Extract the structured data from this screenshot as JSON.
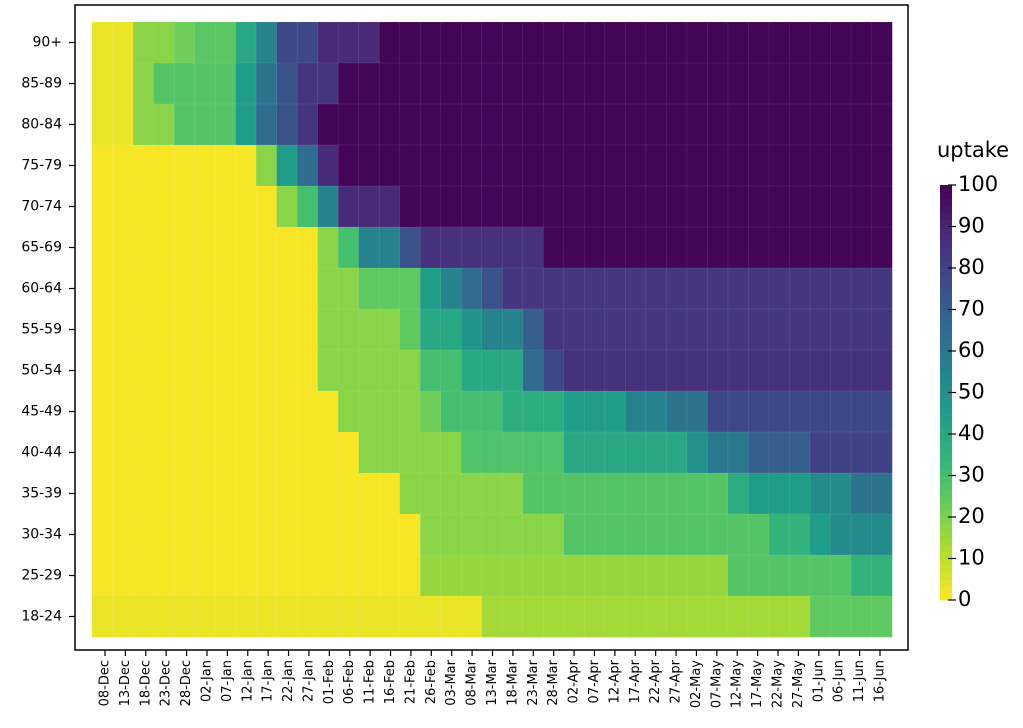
{
  "chart_data": {
    "type": "heatmap",
    "categories": [
      "08-Dec",
      "13-Dec",
      "18-Dec",
      "23-Dec",
      "28-Dec",
      "02-Jan",
      "07-Jan",
      "12-Jan",
      "17-Jan",
      "22-Jan",
      "27-Jan",
      "01-Feb",
      "06-Feb",
      "11-Feb",
      "16-Feb",
      "21-Feb",
      "26-Feb",
      "03-Mar",
      "08-Mar",
      "13-Mar",
      "18-Mar",
      "23-Mar",
      "28-Mar",
      "02-Apr",
      "07-Apr",
      "12-Apr",
      "17-Apr",
      "22-Apr",
      "27-Apr",
      "02-May",
      "07-May",
      "12-May",
      "17-May",
      "22-May",
      "27-May",
      "01-Jun",
      "06-Jun",
      "11-Jun",
      "16-Jun"
    ],
    "rows": [
      "90+",
      "85-89",
      "80-84",
      "75-79",
      "70-74",
      "65-69",
      "60-64",
      "55-59",
      "50-54",
      "45-49",
      "40-44",
      "35-39",
      "30-34",
      "25-29",
      "18-24"
    ],
    "values": [
      [
        3,
        3,
        18,
        18,
        22,
        26,
        26,
        40,
        55,
        78,
        78,
        88,
        88,
        88,
        99,
        99,
        99,
        99,
        99,
        99,
        99,
        99,
        99,
        99,
        99,
        99,
        99,
        99,
        99,
        99,
        99,
        99,
        99,
        99,
        99,
        99,
        99,
        99,
        99
      ],
      [
        3,
        3,
        18,
        27,
        27,
        27,
        27,
        45,
        62,
        75,
        85,
        85,
        99,
        99,
        99,
        99,
        99,
        99,
        99,
        99,
        99,
        99,
        99,
        99,
        99,
        99,
        99,
        99,
        99,
        99,
        99,
        99,
        99,
        99,
        99,
        99,
        99,
        99,
        99
      ],
      [
        3,
        3,
        18,
        18,
        27,
        27,
        27,
        45,
        65,
        75,
        85,
        99,
        99,
        99,
        99,
        99,
        99,
        99,
        99,
        99,
        99,
        99,
        99,
        99,
        99,
        99,
        99,
        99,
        99,
        99,
        99,
        99,
        99,
        99,
        99,
        99,
        99,
        99,
        99
      ],
      [
        1,
        1,
        1,
        1,
        1,
        1,
        1,
        1,
        18,
        45,
        65,
        88,
        99,
        99,
        99,
        99,
        99,
        99,
        99,
        99,
        99,
        99,
        99,
        99,
        99,
        99,
        99,
        99,
        99,
        99,
        99,
        99,
        99,
        99,
        99,
        99,
        99,
        99,
        99
      ],
      [
        1,
        1,
        1,
        1,
        1,
        1,
        1,
        1,
        1,
        18,
        30,
        55,
        88,
        88,
        88,
        99,
        99,
        99,
        99,
        99,
        99,
        99,
        99,
        99,
        99,
        99,
        99,
        99,
        99,
        99,
        99,
        99,
        99,
        99,
        99,
        99,
        99,
        99,
        99
      ],
      [
        1,
        1,
        1,
        1,
        1,
        1,
        1,
        1,
        1,
        1,
        1,
        18,
        30,
        55,
        55,
        75,
        86,
        86,
        86,
        86,
        86,
        86,
        99,
        99,
        99,
        99,
        99,
        99,
        99,
        99,
        99,
        99,
        99,
        99,
        99,
        99,
        99,
        99,
        99
      ],
      [
        1,
        1,
        1,
        1,
        1,
        1,
        1,
        1,
        1,
        1,
        1,
        18,
        18,
        25,
        25,
        25,
        45,
        55,
        65,
        75,
        84,
        84,
        84,
        84,
        84,
        84,
        84,
        84,
        84,
        84,
        84,
        84,
        84,
        84,
        84,
        84,
        84,
        84,
        84
      ],
      [
        1,
        1,
        1,
        1,
        1,
        1,
        1,
        1,
        1,
        1,
        1,
        18,
        18,
        18,
        18,
        25,
        40,
        40,
        48,
        55,
        55,
        70,
        84,
        84,
        84,
        84,
        84,
        84,
        84,
        84,
        84,
        84,
        84,
        84,
        84,
        84,
        84,
        84,
        84
      ],
      [
        1,
        1,
        1,
        1,
        1,
        1,
        1,
        1,
        1,
        1,
        1,
        18,
        18,
        18,
        18,
        18,
        30,
        30,
        40,
        40,
        40,
        65,
        78,
        86,
        86,
        86,
        86,
        86,
        86,
        86,
        86,
        86,
        86,
        86,
        86,
        86,
        86,
        86,
        86
      ],
      [
        1,
        1,
        1,
        1,
        1,
        1,
        1,
        1,
        1,
        1,
        1,
        1,
        18,
        18,
        18,
        18,
        22,
        30,
        30,
        30,
        38,
        38,
        38,
        45,
        45,
        45,
        55,
        55,
        62,
        62,
        78,
        78,
        78,
        78,
        78,
        78,
        78,
        78,
        78
      ],
      [
        1,
        1,
        1,
        1,
        1,
        1,
        1,
        1,
        1,
        1,
        1,
        1,
        1,
        18,
        18,
        18,
        18,
        18,
        28,
        28,
        28,
        28,
        28,
        40,
        40,
        40,
        40,
        40,
        40,
        50,
        60,
        60,
        70,
        70,
        70,
        80,
        80,
        80,
        80
      ],
      [
        1,
        1,
        1,
        1,
        1,
        1,
        1,
        1,
        1,
        1,
        1,
        1,
        1,
        1,
        1,
        18,
        18,
        18,
        18,
        18,
        18,
        27,
        27,
        27,
        27,
        27,
        27,
        27,
        27,
        27,
        27,
        38,
        45,
        45,
        45,
        52,
        52,
        62,
        62
      ],
      [
        1,
        1,
        1,
        1,
        1,
        1,
        1,
        1,
        1,
        1,
        1,
        1,
        1,
        1,
        1,
        1,
        18,
        18,
        18,
        18,
        18,
        18,
        18,
        27,
        27,
        27,
        27,
        27,
        27,
        27,
        27,
        27,
        27,
        35,
        35,
        45,
        52,
        52,
        52
      ],
      [
        1,
        1,
        1,
        1,
        1,
        1,
        1,
        1,
        1,
        1,
        1,
        1,
        1,
        1,
        1,
        1,
        16,
        16,
        16,
        16,
        16,
        16,
        16,
        16,
        16,
        16,
        16,
        16,
        16,
        16,
        16,
        27,
        27,
        27,
        27,
        27,
        27,
        35,
        35
      ],
      [
        3,
        3,
        3,
        3,
        3,
        3,
        3,
        3,
        3,
        3,
        3,
        3,
        3,
        3,
        3,
        3,
        3,
        3,
        3,
        14,
        14,
        14,
        14,
        14,
        14,
        14,
        14,
        14,
        14,
        14,
        14,
        14,
        14,
        14,
        14,
        25,
        25,
        25,
        25
      ]
    ],
    "colormap": "viridis_r",
    "colorbar": {
      "title": "uptake",
      "lim": [
        0,
        100
      ],
      "ticks": [
        0,
        10,
        20,
        30,
        40,
        50,
        60,
        70,
        80,
        90,
        100
      ]
    }
  }
}
